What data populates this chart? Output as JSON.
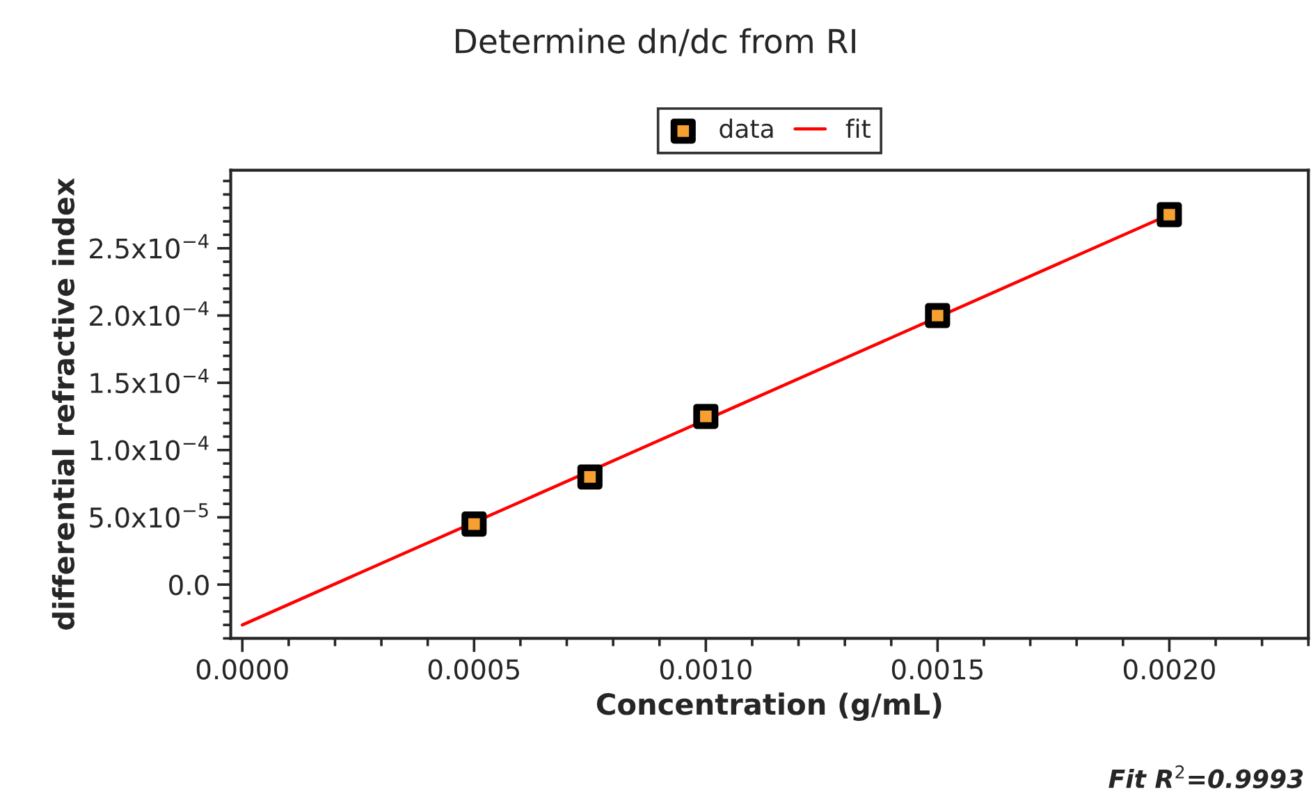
{
  "chart_data": {
    "type": "scatter",
    "title": "Determine dn/dc from RI",
    "xlabel": "Concentration (g/mL)",
    "ylabel": "differential refractive index",
    "series": [
      {
        "name": "data",
        "color": "#000000",
        "marker": "square",
        "x": [
          0.0005,
          0.00075,
          0.001,
          0.0015,
          0.002
        ],
        "values": [
          4.5e-05,
          8e-05,
          0.000125,
          0.0002,
          0.000275
        ]
      },
      {
        "name": "fit",
        "type": "line",
        "color": "#ff0000",
        "marker": "none",
        "line_style": "solid",
        "x": [
          0.0,
          0.002
        ],
        "values": [
          -3e-05,
          0.000275
        ]
      }
    ],
    "xlim": [
      -2.5e-05,
      0.0023
    ],
    "ylim": [
      -4e-05,
      0.000308
    ],
    "xticks": [
      {
        "value": 0.0,
        "label": "0.0000"
      },
      0.0005,
      {
        "value": 0.001,
        "label": "0.0010"
      },
      0.0015,
      {
        "value": 0.002,
        "label": "0.0020"
      }
    ],
    "yticks": [
      {
        "value": 0.0,
        "label": "0.0"
      },
      {
        "value": 5e-05,
        "label": "5.0x10$^{−5}$"
      },
      {
        "value": 0.0001,
        "label": "1.0x10$^{−4}$"
      },
      {
        "value": 0.00015,
        "label": "1.5x10$^{−4}$"
      },
      {
        "value": 0.0002,
        "label": "2.0x10$^{−4}$"
      },
      {
        "value": 0.00025,
        "label": "2.5x10$^{−4}$"
      }
    ],
    "grid": false,
    "legend": "top",
    "annotations": [
      "Fit R$^{2}$=0.9993"
    ]
  }
}
